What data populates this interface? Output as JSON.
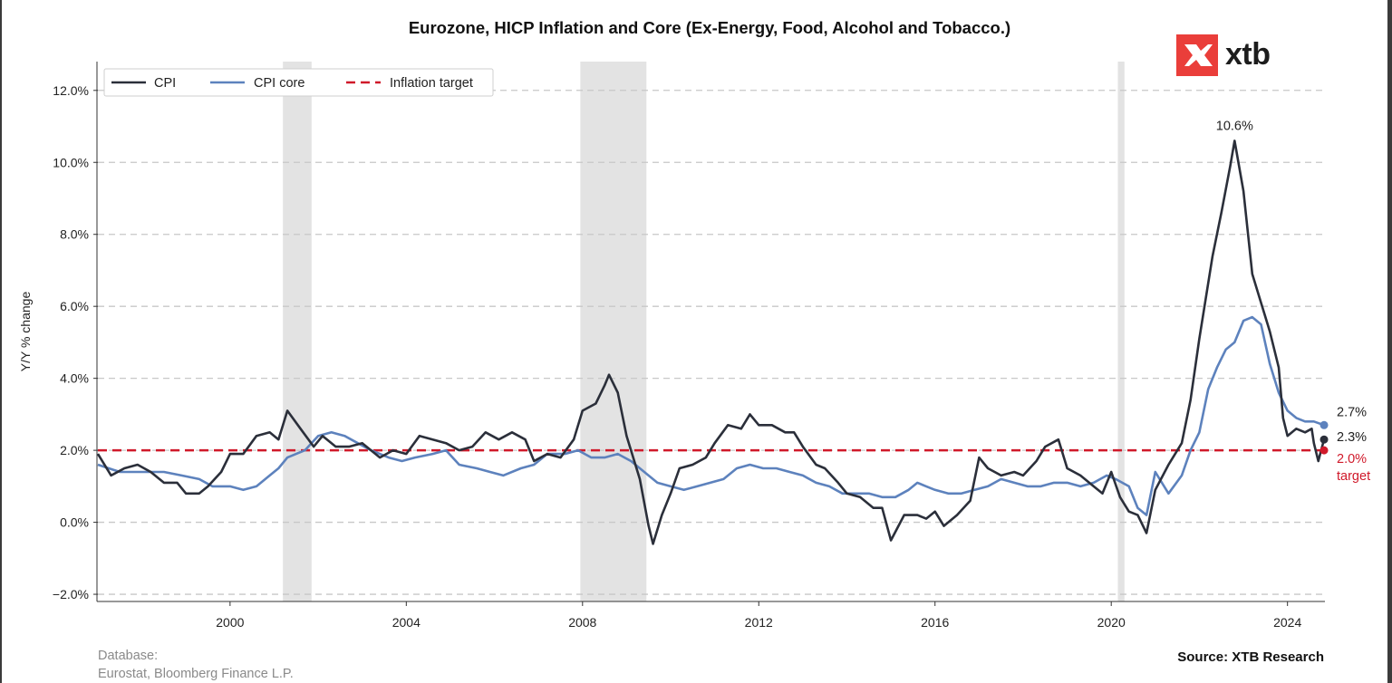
{
  "chart_data": {
    "type": "line",
    "title": "Eurozone, HICP Inflation and Core (Ex-Energy, Food, Alcohol and Tobacco.)",
    "ylabel": "Y/Y % change",
    "xlabel": "",
    "xlim": [
      1997.0,
      2024.85
    ],
    "ylim": [
      -2.2,
      12.8
    ],
    "yticks": [
      -2,
      0,
      2,
      4,
      6,
      8,
      10,
      12
    ],
    "ytick_labels": [
      "−2.0%",
      "0.0%",
      "2.0%",
      "4.0%",
      "6.0%",
      "8.0%",
      "10.0%",
      "12.0%"
    ],
    "xticks": [
      2000,
      2004,
      2008,
      2012,
      2016,
      2020,
      2024
    ],
    "xtick_labels": [
      "2000",
      "2004",
      "2008",
      "2012",
      "2016",
      "2020",
      "2024"
    ],
    "grid": "horizontal dashed",
    "legend": {
      "position": "top-left",
      "entries": [
        "CPI",
        "CPI core",
        "Inflation target"
      ]
    },
    "recessions": [
      [
        2001.2,
        2001.85
      ],
      [
        2007.95,
        2009.45
      ],
      [
        2020.15,
        2020.3
      ]
    ],
    "target": 2.0,
    "series": [
      {
        "name": "CPI",
        "color": "#2b2f3a",
        "points": [
          [
            1997.0,
            1.9
          ],
          [
            1997.3,
            1.3
          ],
          [
            1997.6,
            1.5
          ],
          [
            1997.9,
            1.6
          ],
          [
            1998.2,
            1.4
          ],
          [
            1998.5,
            1.1
          ],
          [
            1998.8,
            1.1
          ],
          [
            1999.0,
            0.8
          ],
          [
            1999.3,
            0.8
          ],
          [
            1999.5,
            1.0
          ],
          [
            1999.8,
            1.4
          ],
          [
            2000.0,
            1.9
          ],
          [
            2000.3,
            1.9
          ],
          [
            2000.6,
            2.4
          ],
          [
            2000.9,
            2.5
          ],
          [
            2001.1,
            2.3
          ],
          [
            2001.3,
            3.1
          ],
          [
            2001.6,
            2.6
          ],
          [
            2001.9,
            2.1
          ],
          [
            2002.1,
            2.4
          ],
          [
            2002.4,
            2.1
          ],
          [
            2002.7,
            2.1
          ],
          [
            2003.0,
            2.2
          ],
          [
            2003.4,
            1.8
          ],
          [
            2003.7,
            2.0
          ],
          [
            2004.0,
            1.9
          ],
          [
            2004.3,
            2.4
          ],
          [
            2004.6,
            2.3
          ],
          [
            2004.9,
            2.2
          ],
          [
            2005.2,
            2.0
          ],
          [
            2005.5,
            2.1
          ],
          [
            2005.8,
            2.5
          ],
          [
            2006.1,
            2.3
          ],
          [
            2006.4,
            2.5
          ],
          [
            2006.7,
            2.3
          ],
          [
            2006.9,
            1.7
          ],
          [
            2007.2,
            1.9
          ],
          [
            2007.5,
            1.8
          ],
          [
            2007.8,
            2.3
          ],
          [
            2008.0,
            3.1
          ],
          [
            2008.3,
            3.3
          ],
          [
            2008.5,
            3.8
          ],
          [
            2008.6,
            4.1
          ],
          [
            2008.8,
            3.6
          ],
          [
            2009.0,
            2.4
          ],
          [
            2009.3,
            1.2
          ],
          [
            2009.5,
            -0.1
          ],
          [
            2009.6,
            -0.6
          ],
          [
            2009.8,
            0.2
          ],
          [
            2010.0,
            0.8
          ],
          [
            2010.2,
            1.5
          ],
          [
            2010.5,
            1.6
          ],
          [
            2010.8,
            1.8
          ],
          [
            2011.0,
            2.2
          ],
          [
            2011.3,
            2.7
          ],
          [
            2011.6,
            2.6
          ],
          [
            2011.8,
            3.0
          ],
          [
            2012.0,
            2.7
          ],
          [
            2012.3,
            2.7
          ],
          [
            2012.6,
            2.5
          ],
          [
            2012.8,
            2.5
          ],
          [
            2013.0,
            2.1
          ],
          [
            2013.3,
            1.6
          ],
          [
            2013.5,
            1.5
          ],
          [
            2013.8,
            1.1
          ],
          [
            2014.0,
            0.8
          ],
          [
            2014.3,
            0.7
          ],
          [
            2014.6,
            0.4
          ],
          [
            2014.8,
            0.4
          ],
          [
            2015.0,
            -0.5
          ],
          [
            2015.3,
            0.2
          ],
          [
            2015.6,
            0.2
          ],
          [
            2015.8,
            0.1
          ],
          [
            2016.0,
            0.3
          ],
          [
            2016.2,
            -0.1
          ],
          [
            2016.5,
            0.2
          ],
          [
            2016.8,
            0.6
          ],
          [
            2017.0,
            1.8
          ],
          [
            2017.2,
            1.5
          ],
          [
            2017.5,
            1.3
          ],
          [
            2017.8,
            1.4
          ],
          [
            2018.0,
            1.3
          ],
          [
            2018.3,
            1.7
          ],
          [
            2018.5,
            2.1
          ],
          [
            2018.8,
            2.3
          ],
          [
            2019.0,
            1.5
          ],
          [
            2019.3,
            1.3
          ],
          [
            2019.6,
            1.0
          ],
          [
            2019.8,
            0.8
          ],
          [
            2020.0,
            1.4
          ],
          [
            2020.2,
            0.7
          ],
          [
            2020.4,
            0.3
          ],
          [
            2020.6,
            0.2
          ],
          [
            2020.8,
            -0.3
          ],
          [
            2021.0,
            0.9
          ],
          [
            2021.3,
            1.6
          ],
          [
            2021.6,
            2.2
          ],
          [
            2021.8,
            3.4
          ],
          [
            2022.0,
            5.1
          ],
          [
            2022.3,
            7.4
          ],
          [
            2022.5,
            8.6
          ],
          [
            2022.7,
            9.9
          ],
          [
            2022.8,
            10.6
          ],
          [
            2023.0,
            9.2
          ],
          [
            2023.2,
            6.9
          ],
          [
            2023.4,
            6.1
          ],
          [
            2023.6,
            5.3
          ],
          [
            2023.8,
            4.3
          ],
          [
            2023.9,
            2.9
          ],
          [
            2024.0,
            2.4
          ],
          [
            2024.2,
            2.6
          ],
          [
            2024.4,
            2.5
          ],
          [
            2024.55,
            2.6
          ],
          [
            2024.6,
            2.2
          ],
          [
            2024.7,
            1.7
          ],
          [
            2024.83,
            2.3
          ]
        ]
      },
      {
        "name": "CPI core",
        "color": "#5d82bd",
        "points": [
          [
            1997.0,
            1.6
          ],
          [
            1997.5,
            1.4
          ],
          [
            1998.0,
            1.4
          ],
          [
            1998.5,
            1.4
          ],
          [
            1998.9,
            1.3
          ],
          [
            1999.3,
            1.2
          ],
          [
            1999.6,
            1.0
          ],
          [
            2000.0,
            1.0
          ],
          [
            2000.3,
            0.9
          ],
          [
            2000.6,
            1.0
          ],
          [
            2000.9,
            1.3
          ],
          [
            2001.1,
            1.5
          ],
          [
            2001.3,
            1.8
          ],
          [
            2001.7,
            2.0
          ],
          [
            2002.0,
            2.4
          ],
          [
            2002.3,
            2.5
          ],
          [
            2002.6,
            2.4
          ],
          [
            2002.9,
            2.2
          ],
          [
            2003.2,
            2.0
          ],
          [
            2003.6,
            1.8
          ],
          [
            2003.9,
            1.7
          ],
          [
            2004.2,
            1.8
          ],
          [
            2004.6,
            1.9
          ],
          [
            2004.9,
            2.0
          ],
          [
            2005.2,
            1.6
          ],
          [
            2005.6,
            1.5
          ],
          [
            2005.9,
            1.4
          ],
          [
            2006.2,
            1.3
          ],
          [
            2006.6,
            1.5
          ],
          [
            2006.9,
            1.6
          ],
          [
            2007.2,
            1.9
          ],
          [
            2007.6,
            1.9
          ],
          [
            2007.9,
            2.0
          ],
          [
            2008.2,
            1.8
          ],
          [
            2008.5,
            1.8
          ],
          [
            2008.8,
            1.9
          ],
          [
            2009.1,
            1.7
          ],
          [
            2009.4,
            1.4
          ],
          [
            2009.7,
            1.1
          ],
          [
            2010.0,
            1.0
          ],
          [
            2010.3,
            0.9
          ],
          [
            2010.6,
            1.0
          ],
          [
            2010.9,
            1.1
          ],
          [
            2011.2,
            1.2
          ],
          [
            2011.5,
            1.5
          ],
          [
            2011.8,
            1.6
          ],
          [
            2012.1,
            1.5
          ],
          [
            2012.4,
            1.5
          ],
          [
            2012.7,
            1.4
          ],
          [
            2013.0,
            1.3
          ],
          [
            2013.3,
            1.1
          ],
          [
            2013.6,
            1.0
          ],
          [
            2013.9,
            0.8
          ],
          [
            2014.2,
            0.8
          ],
          [
            2014.5,
            0.8
          ],
          [
            2014.8,
            0.7
          ],
          [
            2015.1,
            0.7
          ],
          [
            2015.4,
            0.9
          ],
          [
            2015.6,
            1.1
          ],
          [
            2015.8,
            1.0
          ],
          [
            2016.0,
            0.9
          ],
          [
            2016.3,
            0.8
          ],
          [
            2016.6,
            0.8
          ],
          [
            2016.9,
            0.9
          ],
          [
            2017.2,
            1.0
          ],
          [
            2017.5,
            1.2
          ],
          [
            2017.8,
            1.1
          ],
          [
            2018.1,
            1.0
          ],
          [
            2018.4,
            1.0
          ],
          [
            2018.7,
            1.1
          ],
          [
            2019.0,
            1.1
          ],
          [
            2019.3,
            1.0
          ],
          [
            2019.6,
            1.1
          ],
          [
            2019.9,
            1.3
          ],
          [
            2020.1,
            1.2
          ],
          [
            2020.4,
            1.0
          ],
          [
            2020.6,
            0.4
          ],
          [
            2020.8,
            0.2
          ],
          [
            2021.0,
            1.4
          ],
          [
            2021.3,
            0.8
          ],
          [
            2021.6,
            1.3
          ],
          [
            2021.8,
            2.0
          ],
          [
            2022.0,
            2.5
          ],
          [
            2022.2,
            3.7
          ],
          [
            2022.4,
            4.3
          ],
          [
            2022.6,
            4.8
          ],
          [
            2022.8,
            5.0
          ],
          [
            2023.0,
            5.6
          ],
          [
            2023.2,
            5.7
          ],
          [
            2023.4,
            5.5
          ],
          [
            2023.6,
            4.4
          ],
          [
            2023.8,
            3.6
          ],
          [
            2024.0,
            3.1
          ],
          [
            2024.2,
            2.9
          ],
          [
            2024.4,
            2.8
          ],
          [
            2024.6,
            2.8
          ],
          [
            2024.83,
            2.7
          ]
        ]
      }
    ],
    "annotations": [
      {
        "text": "10.6%",
        "at": [
          2022.8,
          10.6
        ]
      },
      {
        "text": "2.7%",
        "at": [
          2024.83,
          2.7
        ]
      },
      {
        "text": "2.3%",
        "at": [
          2024.83,
          2.3
        ]
      },
      {
        "text": "2.0%",
        "at": [
          2024.83,
          2.0
        ]
      },
      {
        "text": "target",
        "at": [
          2024.83,
          2.0
        ]
      }
    ]
  },
  "footer": {
    "db_label": "Database:",
    "db_sources": "Eurostat, Bloomberg Finance L.P.",
    "source": "Source: XTB Research"
  },
  "logo": {
    "text": "xtb",
    "color": "#ea3e3a"
  },
  "colors": {
    "target": "#d0192a",
    "grid": "#c8c8c8",
    "recession": "#e3e3e3"
  }
}
